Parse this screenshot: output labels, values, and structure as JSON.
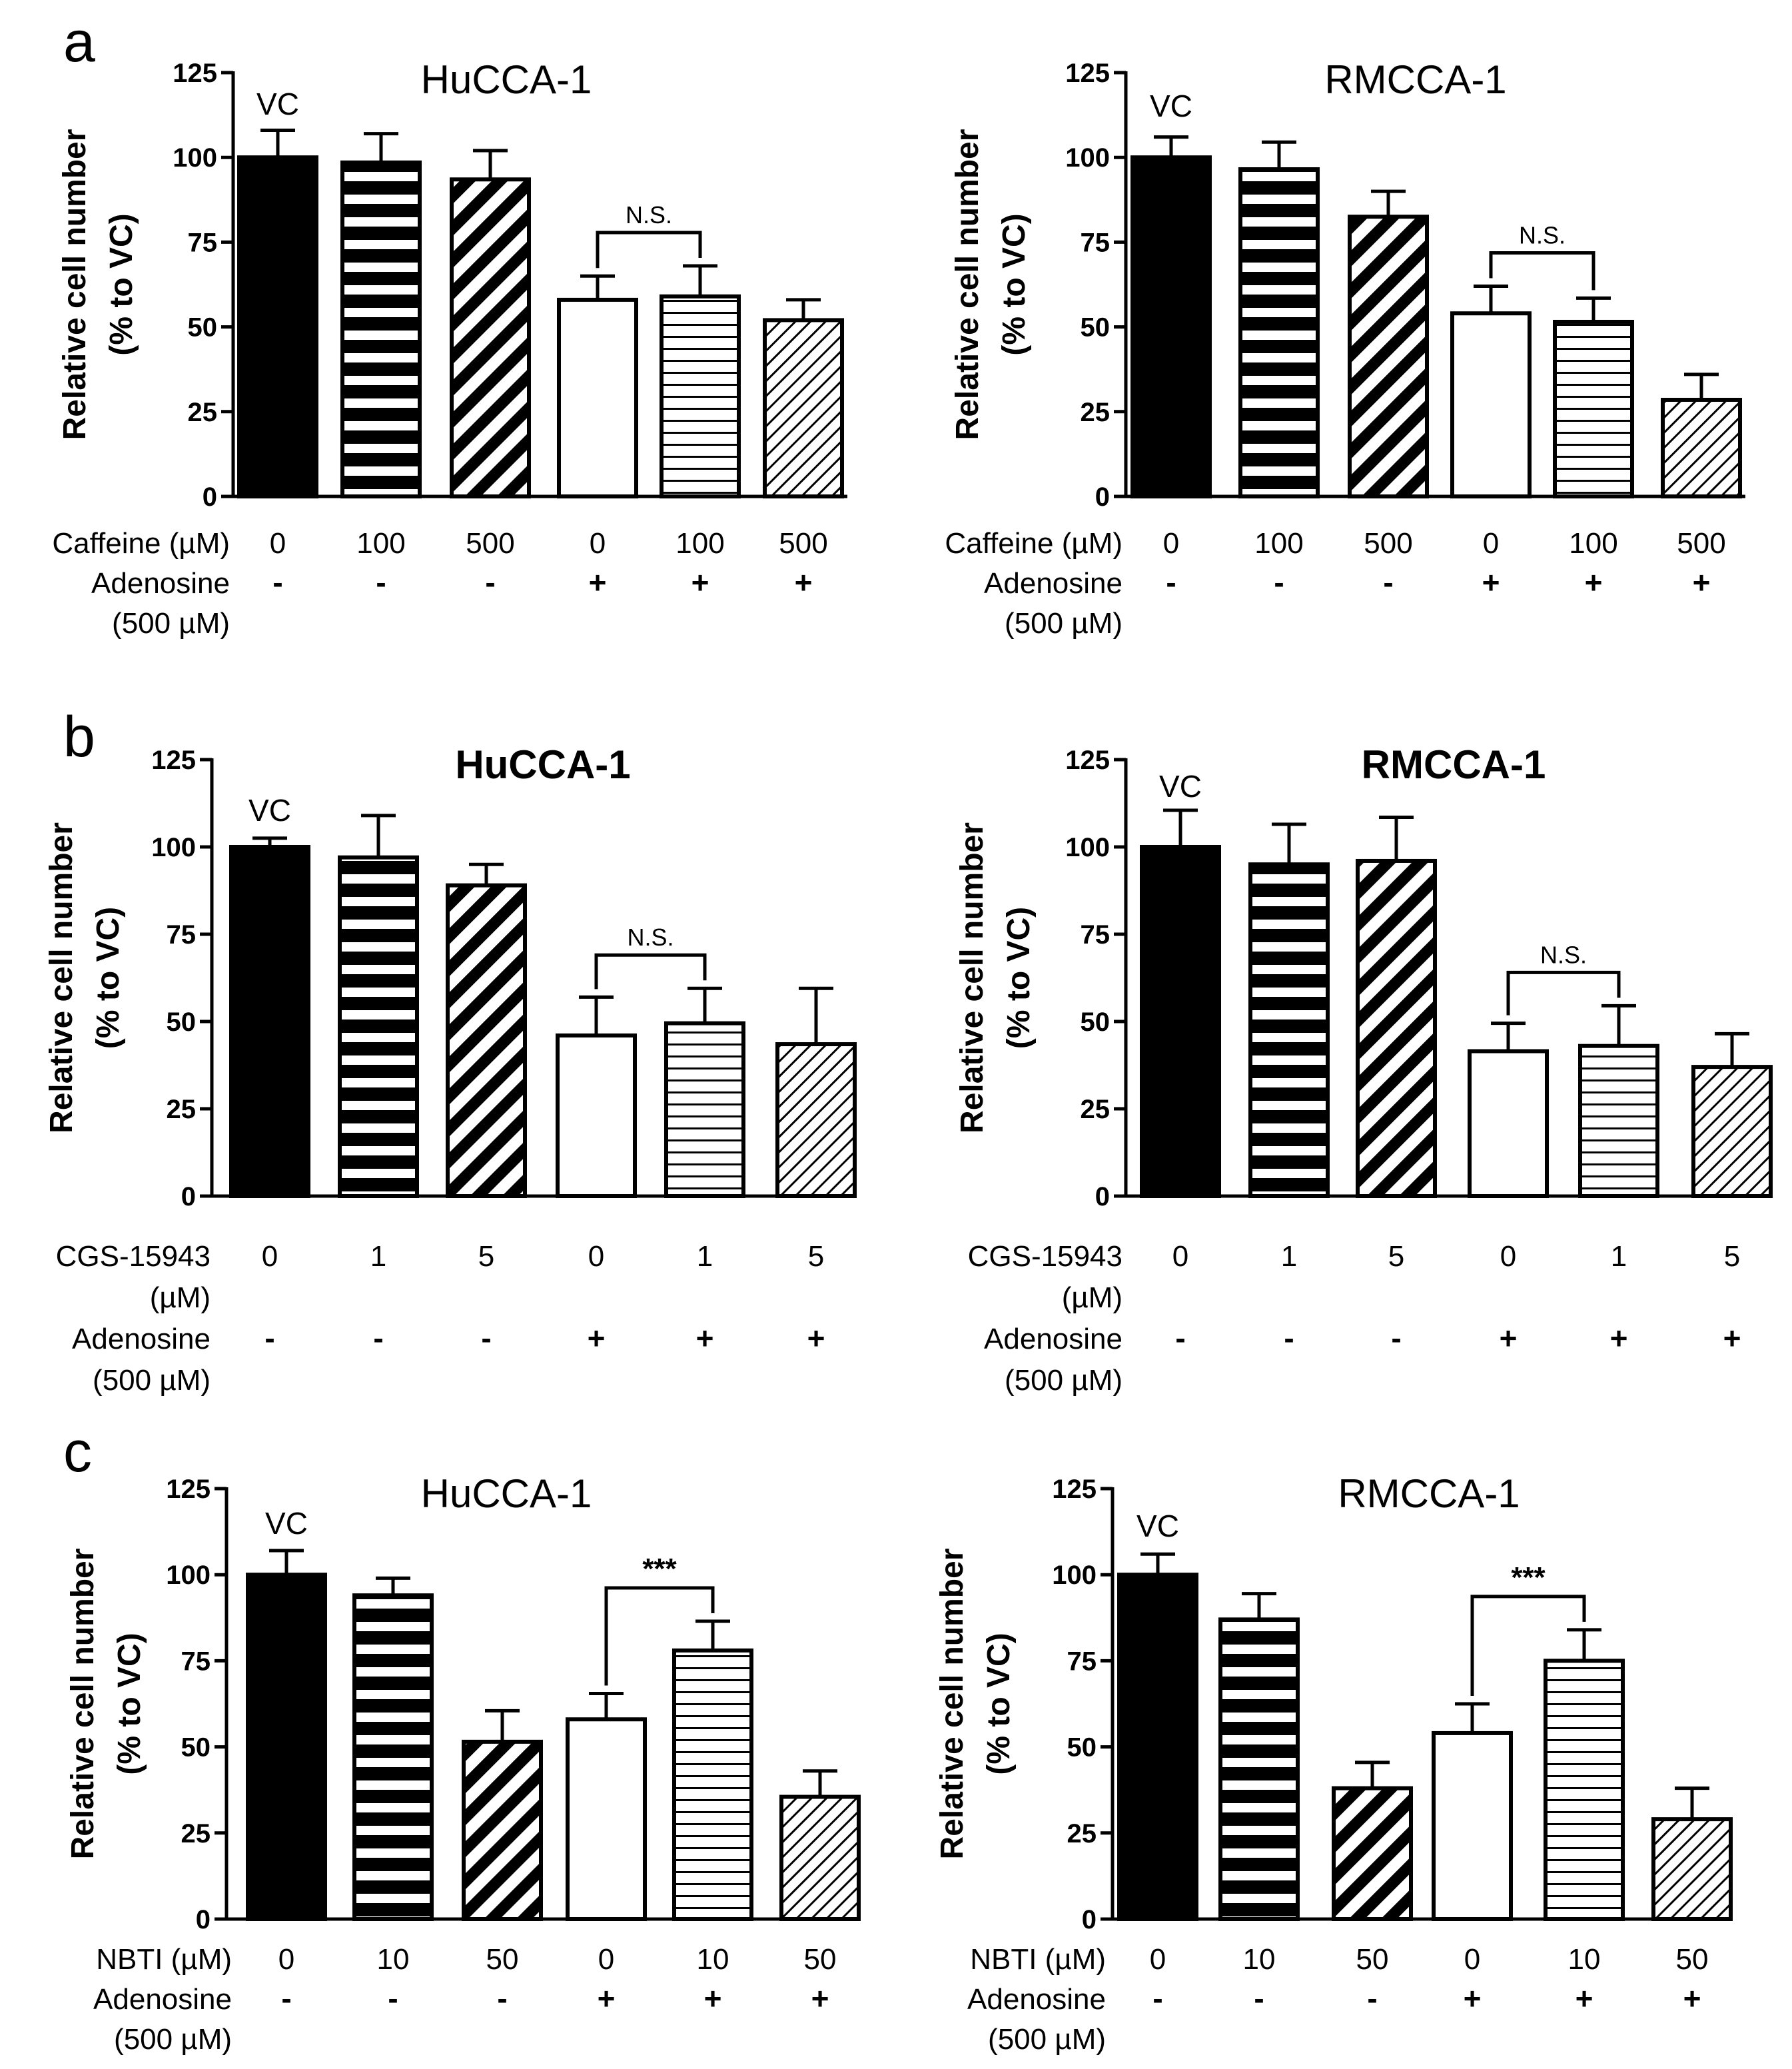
{
  "figure": {
    "panel_letters": [
      "a",
      "b",
      "c"
    ],
    "y_tick_labels": [
      "0",
      "25",
      "50",
      "75",
      "100",
      "125"
    ],
    "vc_label": "VC"
  },
  "chart_data": [
    {
      "type": "bar",
      "panel": "a",
      "title": "HuCCA-1",
      "title_bold": false,
      "ylabel": "Relative cell number",
      "ylabel2": "(% to VC)",
      "ylim": [
        0,
        125
      ],
      "row1_label": "Caffeine (µM)",
      "row1_values": [
        "0",
        "100",
        "500",
        "0",
        "100",
        "500"
      ],
      "row2_label": "Adenosine",
      "row2_label2": "(500 µM)",
      "row2_values": [
        "-",
        "-",
        "-",
        "+",
        "+",
        "+"
      ],
      "values": [
        100,
        98.5,
        93.5,
        58,
        59,
        52
      ],
      "errors": [
        8,
        8.5,
        8.5,
        7,
        9,
        6
      ],
      "patterns": [
        "solid",
        "hlines-thick",
        "dlines-thick",
        "empty",
        "hlines-thin",
        "dlines-thin"
      ],
      "annotation": {
        "text": "N.S.",
        "from": 3,
        "to": 4
      }
    },
    {
      "type": "bar",
      "panel": "a",
      "title": "RMCCA-1",
      "title_bold": false,
      "ylabel": "Relative cell number",
      "ylabel2": "(% to VC)",
      "ylim": [
        0,
        125
      ],
      "row1_label": "Caffeine (µM)",
      "row1_values": [
        "0",
        "100",
        "500",
        "0",
        "100",
        "500"
      ],
      "row2_label": "Adenosine",
      "row2_label2": "(500 µM)",
      "row2_values": [
        "-",
        "-",
        "-",
        "+",
        "+",
        "+"
      ],
      "values": [
        100,
        96.5,
        82.5,
        54,
        51.5,
        28.5
      ],
      "errors": [
        6,
        8,
        7.5,
        8,
        7,
        7.5
      ],
      "patterns": [
        "solid",
        "hlines-thick",
        "dlines-thick",
        "empty",
        "hlines-thin",
        "dlines-thin"
      ],
      "annotation": {
        "text": "N.S.",
        "from": 3,
        "to": 4
      }
    },
    {
      "type": "bar",
      "panel": "b",
      "title": "HuCCA-1",
      "title_bold": true,
      "ylabel": "Relative cell number",
      "ylabel2": "(% to VC)",
      "ylim": [
        0,
        125
      ],
      "row1_label": "CGS-15943",
      "row1_label2": "(µM)",
      "row1_values": [
        "0",
        "1",
        "5",
        "0",
        "1",
        "5"
      ],
      "row2_label": "Adenosine",
      "row2_label2": "(500 µM)",
      "row2_values": [
        "-",
        "-",
        "-",
        "+",
        "+",
        "+"
      ],
      "values": [
        100,
        97,
        89,
        46,
        49.5,
        43.5
      ],
      "errors": [
        2.5,
        12,
        6,
        11,
        10,
        16
      ],
      "patterns": [
        "solid",
        "hlines-thick",
        "dlines-thick",
        "empty",
        "hlines-thin",
        "dlines-thin"
      ],
      "annotation": {
        "text": "N.S.",
        "from": 3,
        "to": 4
      }
    },
    {
      "type": "bar",
      "panel": "b",
      "title": "RMCCA-1",
      "title_bold": true,
      "ylabel": "Relative cell number",
      "ylabel2": "(% to VC)",
      "ylim": [
        0,
        125
      ],
      "row1_label": "CGS-15943",
      "row1_label2": "(µM)",
      "row1_values": [
        "0",
        "1",
        "5",
        "0",
        "1",
        "5"
      ],
      "row2_label": "Adenosine",
      "row2_label2": "(500 µM)",
      "row2_values": [
        "-",
        "-",
        "-",
        "+",
        "+",
        "+"
      ],
      "values": [
        100,
        95,
        96,
        41.5,
        43,
        37
      ],
      "errors": [
        10.5,
        11.5,
        12.5,
        8,
        11.5,
        9.5
      ],
      "patterns": [
        "solid",
        "hlines-thick",
        "dlines-thick",
        "empty",
        "hlines-thin",
        "dlines-thin"
      ],
      "annotation": {
        "text": "N.S.",
        "from": 3,
        "to": 4
      }
    },
    {
      "type": "bar",
      "panel": "c",
      "title": "HuCCA-1",
      "title_bold": false,
      "ylabel": "Relative cell number",
      "ylabel2": "(% to VC)",
      "ylim": [
        0,
        125
      ],
      "row1_label": "NBTI (µM)",
      "row1_values": [
        "0",
        "10",
        "50",
        "0",
        "10",
        "50"
      ],
      "row2_label": "Adenosine",
      "row2_label2": "(500 µM)",
      "row2_values": [
        "-",
        "-",
        "-",
        "+",
        "+",
        "+"
      ],
      "values": [
        100,
        94,
        51.5,
        58,
        78,
        35.5
      ],
      "errors": [
        7,
        5,
        9,
        7.5,
        8.5,
        7.5
      ],
      "patterns": [
        "solid",
        "hlines-thick",
        "dlines-thick",
        "empty",
        "hlines-thin",
        "dlines-thin"
      ],
      "annotation": {
        "text": "***",
        "from": 3,
        "to": 4
      }
    },
    {
      "type": "bar",
      "panel": "c",
      "title": "RMCCA-1",
      "title_bold": false,
      "ylabel": "Relative cell number",
      "ylabel2": "(% to VC)",
      "ylim": [
        0,
        125
      ],
      "row1_label": "NBTI (µM)",
      "row1_values": [
        "0",
        "10",
        "50",
        "0",
        "10",
        "50"
      ],
      "row2_label": "Adenosine",
      "row2_label2": "(500 µM)",
      "row2_values": [
        "-",
        "-",
        "-",
        "+",
        "+",
        "+"
      ],
      "values": [
        100,
        87,
        38,
        54,
        75,
        29
      ],
      "errors": [
        6,
        7.5,
        7.5,
        8.5,
        9,
        9
      ],
      "patterns": [
        "solid",
        "hlines-thick",
        "dlines-thick",
        "empty",
        "hlines-thin",
        "dlines-thin"
      ],
      "annotation": {
        "text": "***",
        "from": 3,
        "to": 4
      }
    }
  ]
}
